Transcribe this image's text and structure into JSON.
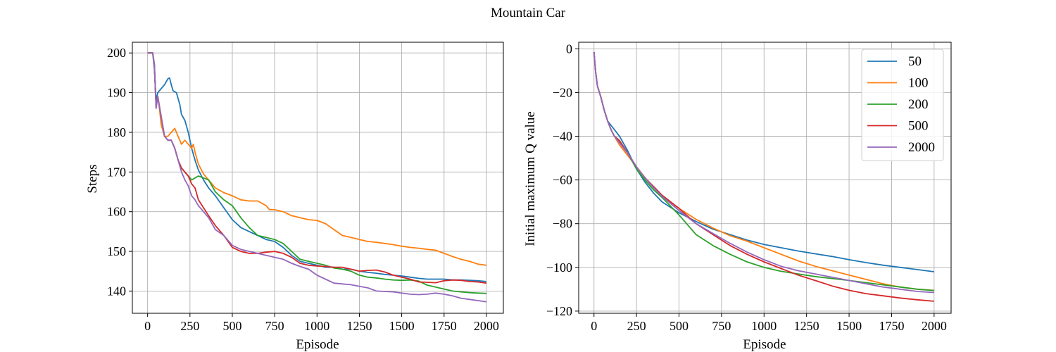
{
  "figure": {
    "title": "Mountain Car"
  },
  "colors": {
    "50": "#1f77b4",
    "100": "#ff7f0e",
    "200": "#2ca02c",
    "500": "#d62728",
    "2000": "#9467bd",
    "grid": "#b0b0b0",
    "axes": "#000000"
  },
  "chart_data": [
    {
      "type": "line",
      "title": "",
      "xlabel": "Episode",
      "ylabel": "Steps",
      "xlim": [
        -90,
        2100
      ],
      "ylim": [
        134.4,
        202.7
      ],
      "xticks": [
        0,
        250,
        500,
        750,
        1000,
        1250,
        1500,
        1750,
        2000
      ],
      "yticks": [
        140,
        150,
        160,
        170,
        180,
        190,
        200
      ],
      "grid": true,
      "series": [
        {
          "name": "50",
          "x": [
            0,
            30,
            40,
            50,
            60,
            80,
            100,
            120,
            130,
            140,
            150,
            170,
            190,
            200,
            220,
            240,
            260,
            280,
            300,
            330,
            360,
            400,
            450,
            500,
            550,
            600,
            650,
            700,
            750,
            800,
            850,
            900,
            950,
            1000,
            1050,
            1100,
            1150,
            1200,
            1250,
            1300,
            1350,
            1400,
            1450,
            1500,
            1550,
            1600,
            1650,
            1700,
            1750,
            1800,
            1850,
            1900,
            1950,
            2000
          ],
          "values": [
            200,
            200,
            196,
            188,
            190,
            191,
            192,
            193.5,
            193.7,
            192,
            190.5,
            190,
            187,
            184.5,
            183,
            180,
            176,
            173,
            170.5,
            168,
            166,
            164,
            161,
            158,
            156,
            155,
            154,
            153,
            152.5,
            151,
            149,
            147.5,
            147,
            146.5,
            146,
            146,
            145.5,
            145.5,
            145,
            144.7,
            144.5,
            144.2,
            144,
            143.8,
            143.5,
            143.2,
            143,
            143,
            143,
            142.8,
            142.8,
            142.7,
            142.6,
            142.4
          ]
        },
        {
          "name": "100",
          "x": [
            0,
            30,
            40,
            50,
            60,
            70,
            80,
            100,
            120,
            140,
            160,
            180,
            200,
            220,
            240,
            260,
            270,
            280,
            300,
            330,
            360,
            400,
            450,
            500,
            550,
            600,
            650,
            700,
            720,
            750,
            800,
            850,
            900,
            950,
            1000,
            1050,
            1100,
            1150,
            1200,
            1250,
            1300,
            1350,
            1400,
            1450,
            1500,
            1550,
            1600,
            1650,
            1700,
            1750,
            1800,
            1850,
            1900,
            1950,
            2000
          ],
          "values": [
            200,
            200,
            197,
            186.5,
            189,
            186,
            182,
            179,
            179,
            180,
            181,
            179,
            177,
            178,
            177,
            176,
            177,
            175,
            172,
            169.5,
            168,
            166,
            164.8,
            164,
            163,
            162.7,
            162.7,
            161.5,
            160.5,
            160.5,
            160,
            159,
            158.5,
            158,
            157.8,
            157,
            155.5,
            154,
            153.5,
            153,
            152.5,
            152.3,
            152,
            151.7,
            151.3,
            151,
            150.8,
            150.5,
            150.3,
            149.5,
            148.7,
            148,
            147.5,
            146.8,
            146.5
          ]
        },
        {
          "name": "200",
          "x": [
            0,
            30,
            40,
            50,
            60,
            80,
            100,
            120,
            140,
            160,
            180,
            200,
            220,
            240,
            260,
            280,
            300,
            330,
            360,
            400,
            450,
            500,
            550,
            600,
            650,
            700,
            750,
            800,
            850,
            900,
            950,
            1000,
            1050,
            1100,
            1150,
            1200,
            1250,
            1300,
            1350,
            1400,
            1450,
            1500,
            1550,
            1600,
            1650,
            1700,
            1750,
            1800,
            1850,
            1900,
            1950,
            2000
          ],
          "values": [
            200,
            200,
            197,
            186.5,
            189,
            184,
            179,
            178,
            178,
            176,
            173,
            171,
            170,
            169,
            168,
            168.5,
            169,
            168.5,
            168,
            165,
            163,
            161.5,
            158.5,
            156,
            154,
            153.5,
            153,
            152,
            150,
            148,
            147.5,
            147,
            146.5,
            145.8,
            145.5,
            145,
            144,
            143.5,
            143.3,
            143,
            142.8,
            142.7,
            142.8,
            142.5,
            141.5,
            141,
            140.5,
            140,
            139.8,
            139.6,
            139.5,
            139.4
          ]
        },
        {
          "name": "500",
          "x": [
            0,
            30,
            40,
            50,
            60,
            80,
            100,
            120,
            140,
            160,
            180,
            200,
            220,
            240,
            260,
            280,
            300,
            330,
            360,
            400,
            450,
            500,
            550,
            600,
            650,
            700,
            750,
            800,
            850,
            900,
            950,
            1000,
            1050,
            1100,
            1150,
            1200,
            1250,
            1300,
            1350,
            1400,
            1450,
            1500,
            1550,
            1600,
            1650,
            1700,
            1750,
            1800,
            1850,
            1900,
            1950,
            2000
          ],
          "values": [
            200,
            200,
            197,
            186.5,
            189,
            184,
            179,
            178,
            178,
            176,
            173,
            171,
            170,
            169,
            167,
            166,
            163,
            161,
            159,
            156.5,
            154,
            151,
            150,
            149.5,
            149.5,
            149.8,
            150,
            149.5,
            148.5,
            147,
            146.5,
            146.3,
            146.2,
            146,
            146,
            145.5,
            145,
            145.2,
            145.3,
            144.8,
            144,
            143.5,
            143,
            142.3,
            142.2,
            142.1,
            142.6,
            142.8,
            142.7,
            142.4,
            142.3,
            142
          ]
        },
        {
          "name": "2000",
          "x": [
            0,
            30,
            40,
            50,
            60,
            80,
            100,
            120,
            140,
            160,
            180,
            200,
            220,
            240,
            260,
            280,
            300,
            330,
            360,
            400,
            450,
            500,
            550,
            600,
            650,
            700,
            750,
            800,
            850,
            900,
            950,
            1000,
            1050,
            1100,
            1150,
            1200,
            1250,
            1300,
            1350,
            1400,
            1450,
            1500,
            1550,
            1600,
            1650,
            1700,
            1750,
            1800,
            1850,
            1900,
            1950,
            2000
          ],
          "values": [
            200,
            200,
            197,
            186,
            189,
            184,
            179,
            178,
            178,
            176,
            173,
            170,
            168,
            166.5,
            164,
            163,
            161.5,
            160,
            158.5,
            155.5,
            154,
            151.5,
            150.5,
            150,
            149.5,
            149,
            148.5,
            148,
            147,
            146.2,
            145.5,
            144,
            143,
            142,
            141.8,
            141.6,
            141.2,
            140.8,
            140,
            139.9,
            139.8,
            139.5,
            139.2,
            139.1,
            139.2,
            139.5,
            139.2,
            138.8,
            138.2,
            137.9,
            137.6,
            137.3
          ]
        }
      ]
    },
    {
      "type": "line",
      "title": "",
      "xlabel": "Episode",
      "ylabel": "Initial maximum Q value",
      "xlim": [
        -90,
        2100
      ],
      "ylim": [
        -121,
        3
      ],
      "xticks": [
        0,
        250,
        500,
        750,
        1000,
        1250,
        1500,
        1750,
        2000
      ],
      "yticks": [
        0,
        -20,
        -40,
        -60,
        -80,
        -100,
        -120
      ],
      "grid": true,
      "legend": {
        "position": "top-right",
        "entries": [
          "50",
          "100",
          "200",
          "500",
          "2000"
        ]
      },
      "series": [
        {
          "name": "50",
          "x": [
            0,
            5,
            10,
            20,
            40,
            60,
            80,
            100,
            120,
            150,
            200,
            250,
            300,
            350,
            400,
            500,
            600,
            700,
            800,
            900,
            1000,
            1100,
            1200,
            1300,
            1400,
            1500,
            1600,
            1700,
            1800,
            1900,
            2000
          ],
          "values": [
            -1.5,
            -6,
            -11,
            -17,
            -22,
            -28,
            -33,
            -35,
            -37,
            -40,
            -47,
            -55,
            -61,
            -66,
            -70,
            -75,
            -79,
            -82.5,
            -85,
            -87.5,
            -89.5,
            -91,
            -92.5,
            -93.8,
            -95,
            -96.5,
            -97.8,
            -99,
            -100,
            -101,
            -102
          ]
        },
        {
          "name": "100",
          "x": [
            0,
            5,
            10,
            20,
            40,
            60,
            80,
            100,
            120,
            150,
            200,
            250,
            300,
            350,
            400,
            500,
            600,
            700,
            800,
            900,
            1000,
            1100,
            1200,
            1300,
            1400,
            1500,
            1600,
            1700,
            1800,
            1900,
            2000
          ],
          "values": [
            -1.5,
            -6,
            -11,
            -17,
            -22,
            -28,
            -33,
            -37,
            -40,
            -44,
            -49,
            -54,
            -59,
            -63.5,
            -67,
            -73,
            -78,
            -82,
            -85.5,
            -88,
            -91,
            -94,
            -97,
            -99.5,
            -101.5,
            -103.5,
            -105.5,
            -107.5,
            -109,
            -110,
            -110.5
          ]
        },
        {
          "name": "200",
          "x": [
            0,
            5,
            10,
            20,
            40,
            60,
            80,
            100,
            120,
            150,
            200,
            250,
            300,
            350,
            400,
            500,
            600,
            700,
            800,
            900,
            1000,
            1100,
            1200,
            1300,
            1400,
            1500,
            1600,
            1700,
            1800,
            1900,
            2000
          ],
          "values": [
            -1.5,
            -6,
            -11,
            -17,
            -22,
            -28,
            -33,
            -37,
            -40,
            -42,
            -48,
            -55,
            -60,
            -64.5,
            -68,
            -76,
            -85,
            -90,
            -94,
            -97.5,
            -100,
            -101.8,
            -103,
            -104.2,
            -105.1,
            -106,
            -107,
            -108,
            -109,
            -110,
            -110.6
          ]
        },
        {
          "name": "500",
          "x": [
            0,
            5,
            10,
            20,
            40,
            60,
            80,
            100,
            120,
            150,
            200,
            250,
            300,
            350,
            400,
            500,
            600,
            700,
            800,
            900,
            1000,
            1100,
            1200,
            1300,
            1400,
            1500,
            1600,
            1700,
            1800,
            1900,
            2000
          ],
          "values": [
            -1.5,
            -6,
            -11,
            -17,
            -22,
            -28,
            -33,
            -37,
            -40,
            -42,
            -48,
            -54,
            -59,
            -63,
            -67,
            -73,
            -80,
            -85,
            -90,
            -94,
            -97.5,
            -100.5,
            -103.5,
            -106,
            -108.5,
            -110.5,
            -112,
            -113,
            -114,
            -114.8,
            -115.5
          ]
        },
        {
          "name": "2000",
          "x": [
            0,
            5,
            10,
            20,
            40,
            60,
            80,
            100,
            120,
            150,
            200,
            250,
            300,
            350,
            400,
            500,
            600,
            700,
            800,
            900,
            1000,
            1100,
            1200,
            1300,
            1400,
            1500,
            1600,
            1700,
            1800,
            1900,
            2000
          ],
          "values": [
            -1.5,
            -6,
            -11,
            -17,
            -22,
            -28,
            -33,
            -37,
            -40,
            -43,
            -48,
            -54,
            -59,
            -63.5,
            -67.5,
            -74,
            -80,
            -84.5,
            -89,
            -93,
            -96.5,
            -99.5,
            -101.5,
            -103,
            -104.5,
            -106,
            -107.5,
            -109,
            -110,
            -111,
            -111.5
          ]
        }
      ]
    }
  ]
}
